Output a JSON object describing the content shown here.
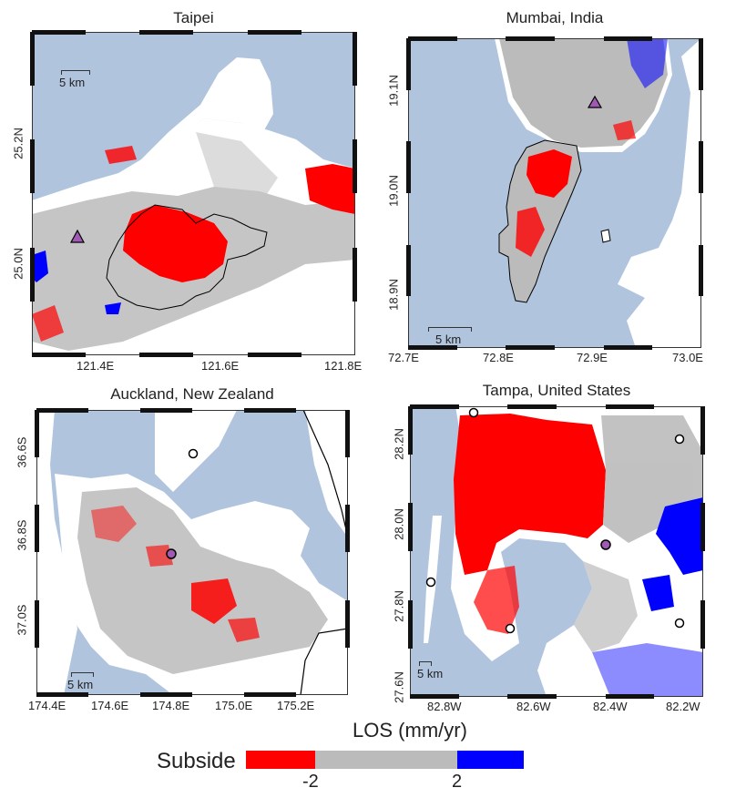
{
  "colors": {
    "water": "#b0c4de",
    "land": "#ffffff",
    "subside": "#ff0000",
    "stable": "#bbbbbb",
    "uplift": "#0000ff",
    "site_fill": "#a05ab4"
  },
  "panels": {
    "taipei": {
      "title": "Taipei",
      "xticks": [
        "121.4E",
        "121.6E",
        "121.8E"
      ],
      "yticks": [
        "25.2N",
        "25.0N"
      ],
      "scale": "5 km",
      "marker_icon": "triangle-icon"
    },
    "mumbai": {
      "title": "Mumbai, India",
      "xticks": [
        "72.7E",
        "72.8E",
        "72.9E",
        "73.0E"
      ],
      "yticks": [
        "19.1N",
        "19.0N",
        "18.9N"
      ],
      "scale": "5 km",
      "marker_icon": "triangle-icon"
    },
    "auckland": {
      "title": "Auckland, New Zealand",
      "xticks": [
        "174.4E",
        "174.6E",
        "174.8E",
        "175.0E",
        "175.2E"
      ],
      "yticks": [
        "36.6S",
        "36.8S",
        "37.0S"
      ],
      "scale": "5 km",
      "marker_icon": "circle-icon"
    },
    "tampa": {
      "title": "Tampa, United States",
      "xticks": [
        "82.8W",
        "82.6W",
        "82.4W",
        "82.2W"
      ],
      "yticks": [
        "28.2N",
        "28.0N",
        "27.8N",
        "27.6N"
      ],
      "scale": "5 km",
      "marker_icon": "circle-icon"
    }
  },
  "legend": {
    "title": "LOS (mm/yr)",
    "label_left": "Subside",
    "tick_low": "-2",
    "tick_high": "2"
  }
}
